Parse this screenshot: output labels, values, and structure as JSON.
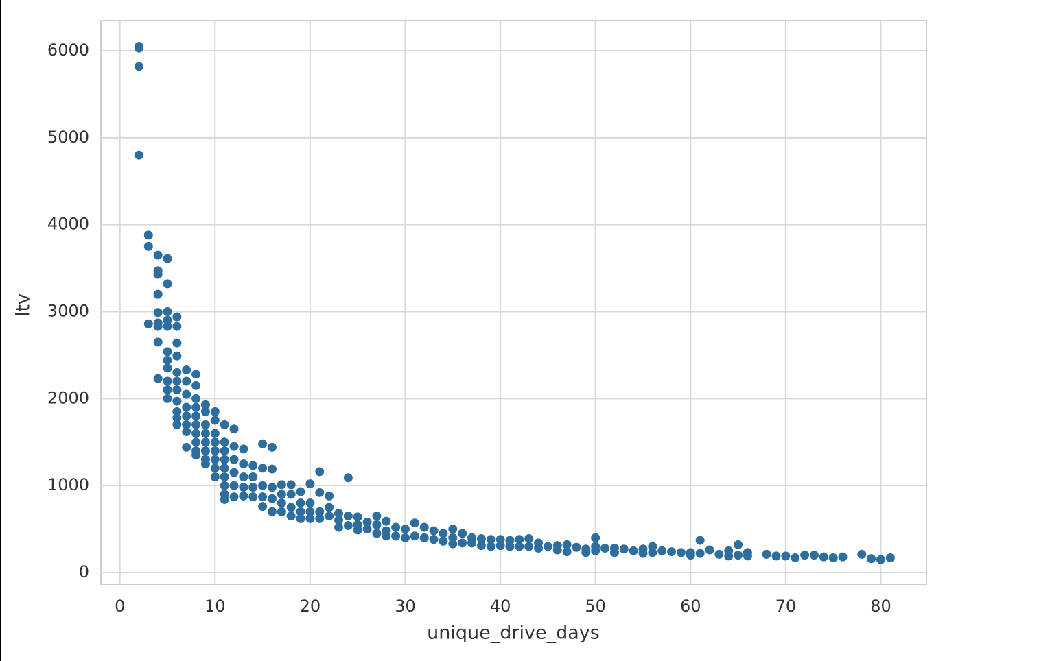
{
  "chart_data": {
    "type": "scatter",
    "xlabel": "unique_drive_days",
    "ylabel": "ltv",
    "color": "#2e6e9e",
    "grid": true,
    "xlim": [
      -2,
      84.8
    ],
    "ylim": [
      -134,
      6347
    ],
    "xticks": [
      0,
      10,
      20,
      30,
      40,
      50,
      60,
      70,
      80
    ],
    "yticks": [
      0,
      1000,
      2000,
      3000,
      4000,
      5000,
      6000
    ],
    "x": [
      2,
      2,
      2,
      2,
      3,
      3,
      3,
      4,
      4,
      4,
      4,
      4,
      4,
      4,
      4,
      4,
      5,
      5,
      5,
      5,
      5,
      5,
      5,
      5,
      5,
      5,
      5,
      6,
      6,
      6,
      6,
      6,
      6,
      6,
      6,
      6,
      6,
      6,
      7,
      7,
      7,
      7,
      7,
      7,
      7,
      7,
      8,
      8,
      8,
      8,
      8,
      8,
      8,
      8,
      8,
      8,
      9,
      9,
      9,
      9,
      9,
      9,
      9,
      9,
      10,
      10,
      10,
      10,
      10,
      10,
      10,
      10,
      11,
      11,
      11,
      11,
      11,
      11,
      11,
      11,
      11,
      12,
      12,
      12,
      12,
      12,
      12,
      13,
      13,
      13,
      13,
      13,
      14,
      14,
      14,
      14,
      15,
      15,
      15,
      15,
      15,
      16,
      16,
      16,
      16,
      16,
      17,
      17,
      17,
      17,
      18,
      18,
      18,
      18,
      19,
      19,
      19,
      19,
      20,
      20,
      20,
      20,
      21,
      21,
      21,
      21,
      22,
      22,
      22,
      23,
      23,
      23,
      24,
      24,
      24,
      25,
      25,
      25,
      26,
      26,
      27,
      27,
      27,
      28,
      28,
      28,
      29,
      29,
      30,
      30,
      31,
      31,
      32,
      32,
      33,
      33,
      34,
      34,
      35,
      35,
      35,
      36,
      36,
      37,
      37,
      38,
      38,
      39,
      39,
      40,
      40,
      41,
      41,
      42,
      42,
      43,
      43,
      44,
      44,
      45,
      46,
      46,
      47,
      47,
      48,
      49,
      49,
      50,
      50,
      50,
      51,
      52,
      52,
      53,
      54,
      55,
      55,
      56,
      56,
      57,
      58,
      59,
      60,
      60,
      61,
      61,
      62,
      63,
      64,
      64,
      65,
      65,
      66,
      66,
      68,
      69,
      70,
      71,
      72,
      73,
      74,
      75,
      76,
      78,
      79,
      80,
      81
    ],
    "values": [
      6050,
      6030,
      5820,
      4800,
      3880,
      3750,
      2860,
      3650,
      3470,
      3430,
      3200,
      2990,
      2870,
      2830,
      2650,
      2230,
      3610,
      3320,
      3000,
      2900,
      2830,
      2540,
      2440,
      2350,
      2200,
      2100,
      2000,
      2940,
      2830,
      2640,
      2490,
      2300,
      2200,
      2100,
      1970,
      1850,
      1780,
      1700,
      2330,
      2200,
      2050,
      1900,
      1800,
      1700,
      1620,
      1440,
      2280,
      2150,
      2000,
      1900,
      1800,
      1700,
      1600,
      1500,
      1400,
      1350,
      1930,
      1850,
      1700,
      1600,
      1500,
      1400,
      1300,
      1250,
      1850,
      1750,
      1600,
      1500,
      1400,
      1300,
      1200,
      1100,
      1700,
      1500,
      1400,
      1300,
      1200,
      1100,
      1000,
      900,
      840,
      1650,
      1450,
      1300,
      1150,
      1000,
      870,
      1420,
      1250,
      1100,
      980,
      880,
      1230,
      1100,
      980,
      870,
      1480,
      1200,
      1000,
      870,
      760,
      1440,
      1190,
      980,
      850,
      700,
      1010,
      900,
      800,
      700,
      1010,
      900,
      750,
      650,
      930,
      800,
      700,
      620,
      1020,
      800,
      700,
      620,
      1160,
      920,
      700,
      620,
      880,
      750,
      650,
      680,
      600,
      520,
      1090,
      650,
      540,
      640,
      550,
      490,
      580,
      500,
      650,
      550,
      450,
      590,
      480,
      420,
      520,
      420,
      500,
      400,
      570,
      420,
      520,
      400,
      480,
      380,
      450,
      360,
      500,
      400,
      330,
      450,
      340,
      400,
      340,
      390,
      310,
      380,
      300,
      380,
      310,
      370,
      300,
      380,
      300,
      390,
      300,
      340,
      280,
      300,
      310,
      260,
      320,
      240,
      290,
      270,
      230,
      400,
      300,
      250,
      280,
      280,
      230,
      270,
      250,
      270,
      220,
      300,
      230,
      250,
      240,
      230,
      230,
      200,
      370,
      220,
      260,
      210,
      250,
      190,
      320,
      200,
      230,
      190,
      210,
      190,
      190,
      170,
      200,
      200,
      180,
      170,
      180,
      210,
      160,
      150,
      170
    ]
  }
}
